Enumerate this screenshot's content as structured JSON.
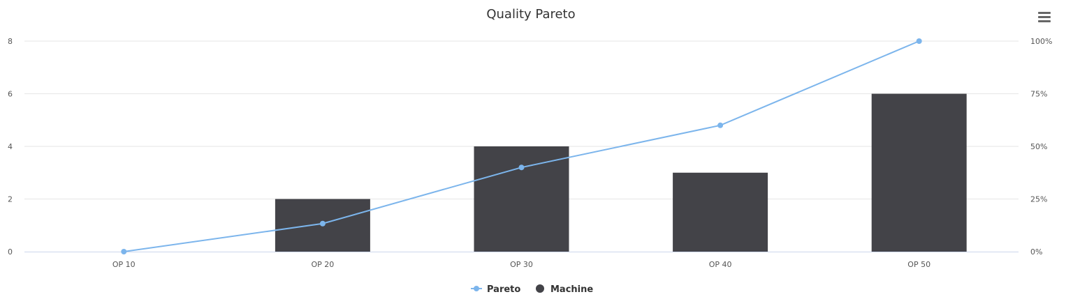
{
  "chart_data": {
    "type": "bar",
    "title": "Quality Pareto",
    "categories": [
      "OP 10",
      "OP 20",
      "OP 30",
      "OP 40",
      "OP 50"
    ],
    "series": [
      {
        "name": "Machine",
        "type": "bar",
        "axis": "left",
        "values": [
          0,
          2,
          4,
          3,
          6
        ]
      },
      {
        "name": "Pareto",
        "type": "line",
        "axis": "right",
        "values": [
          0,
          13.33,
          40,
          60,
          100
        ]
      }
    ],
    "y_left": {
      "min": 0,
      "max": 8,
      "ticks": [
        "0",
        "2",
        "4",
        "6",
        "8"
      ]
    },
    "y_right": {
      "min": 0,
      "max": 100,
      "ticks": [
        "0%",
        "25%",
        "50%",
        "75%",
        "100%"
      ]
    },
    "legend": {
      "placement": "bottom-center",
      "items": [
        "Pareto",
        "Machine"
      ]
    },
    "grid": true,
    "colors": {
      "bar": "#434348",
      "line": "#7cb5ec",
      "grid": "#e6e6e6",
      "axis": "#ccd6eb",
      "menu": "#666666"
    }
  },
  "menu": {
    "icon": "hamburger-menu-icon"
  }
}
